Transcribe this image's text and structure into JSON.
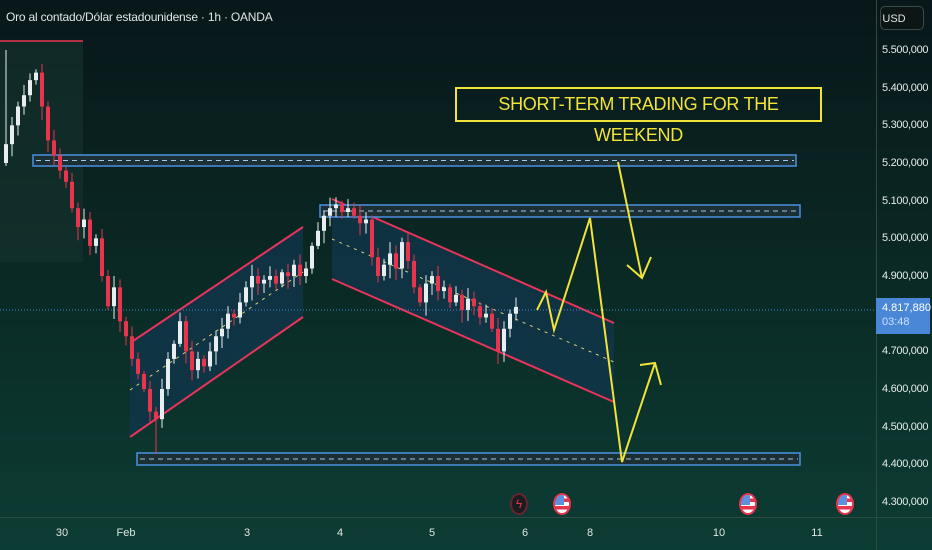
{
  "header": {
    "title": "Oro al contado/Dólar estadounidense · 1h · OANDA"
  },
  "price_axis": {
    "currency": "USD",
    "ticks": [
      "5.500,000",
      "5.400,000",
      "5.300,000",
      "5.200,000",
      "5.100,000",
      "5.000,000",
      "4.900,000",
      "4.700,000",
      "4.600,000",
      "4.500,000",
      "4.400,000",
      "4.300,000"
    ],
    "current_price": "4.817,880",
    "countdown": "03:48"
  },
  "time_axis": {
    "ticks": [
      "30",
      "Feb",
      "3",
      "4",
      "5",
      "6",
      "8",
      "10",
      "11"
    ]
  },
  "annotation": {
    "text": "SHORT-TERM TRADING FOR THE WEEKEND"
  },
  "events": [
    {
      "type": "lightning-icon"
    },
    {
      "type": "us-flag-icon"
    },
    {
      "type": "us-flag-icon"
    },
    {
      "type": "us-flag-icon"
    }
  ],
  "colors": {
    "up": "#e8eef0",
    "down": "#e8344d",
    "zone": "#4a90e2",
    "channel": "#e8345a",
    "annotation": "#f2e33a"
  },
  "chart_data": {
    "type": "candlestick",
    "title": "Oro al contado/Dólar estadounidense · 1h · OANDA",
    "ylim": [
      4250,
      5560
    ],
    "y_ticks": [
      5500,
      5400,
      5300,
      5200,
      5100,
      5000,
      4900,
      4700,
      4600,
      4500,
      4400,
      4300
    ],
    "current_price": 4817.88,
    "closes": [
      5250,
      5300,
      5350,
      5380,
      5420,
      5440,
      5350,
      5260,
      5220,
      5180,
      5150,
      5080,
      5030,
      5050,
      4980,
      5000,
      4900,
      4820,
      4870,
      4780,
      4740,
      4680,
      4640,
      4600,
      4540,
      4520,
      4600,
      4680,
      4720,
      4780,
      4700,
      4650,
      4680,
      4660,
      4700,
      4740,
      4760,
      4800,
      4790,
      4830,
      4870,
      4900,
      4880,
      4890,
      4900,
      4880,
      4910,
      4900,
      4930,
      4900,
      4920,
      4980,
      5020,
      5060,
      5080,
      5090,
      5070,
      5080,
      5060,
      5040,
      5050,
      4950,
      4900,
      4930,
      4960,
      4920,
      4990,
      4940,
      4870,
      4830,
      4880,
      4900,
      4860,
      4870,
      4830,
      4850,
      4810,
      4840,
      4820,
      4790,
      4800,
      4760,
      4700,
      4760,
      4800,
      4818
    ],
    "zones": [
      5210,
      5075,
      4420
    ]
  }
}
